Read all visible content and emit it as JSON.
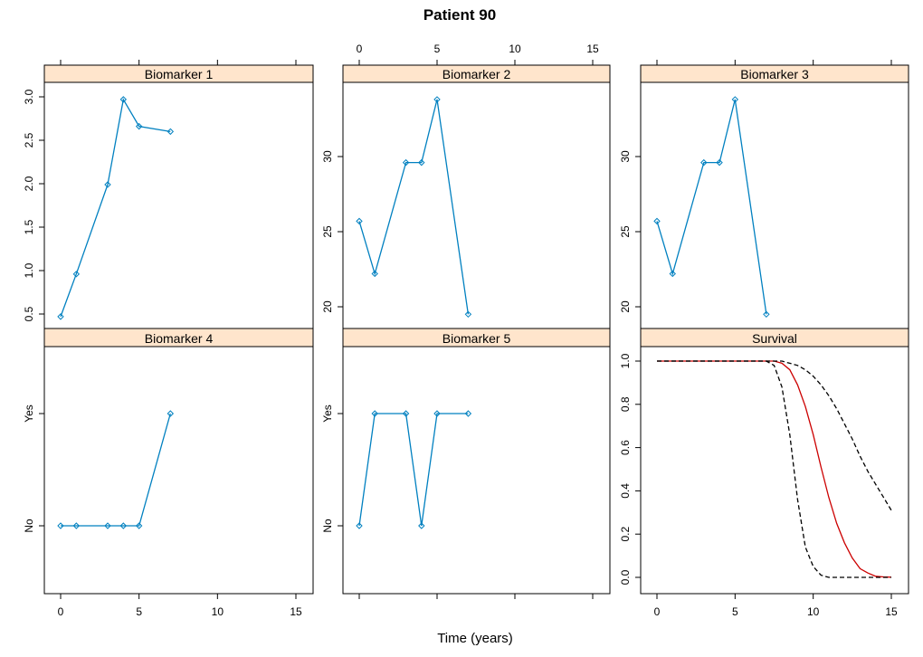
{
  "title": "Patient 90",
  "xlabel": "Time (years)",
  "colors": {
    "strip_bg": "#FFE5CC",
    "series": "#0080C0",
    "survival": "#CC0000",
    "bounds": "#000000"
  },
  "chart_data": [
    {
      "type": "line",
      "strip_label": "Biomarker 1",
      "x": [
        0,
        1,
        3,
        4,
        5,
        7
      ],
      "y": [
        0.47,
        0.96,
        1.99,
        2.97,
        2.66,
        2.6
      ],
      "xlim": [
        0,
        15
      ],
      "y_ticks": [
        0.5,
        1.0,
        1.5,
        2.0,
        2.5,
        3.0
      ],
      "y_tick_labels": [
        "0.5",
        "1.0",
        "1.5",
        "2.0",
        "2.5",
        "3.0"
      ],
      "markers": "open-diamond"
    },
    {
      "type": "line",
      "strip_label": "Biomarker 2",
      "x": [
        0,
        1,
        3,
        4,
        5,
        7
      ],
      "y": [
        25.7,
        22.2,
        29.6,
        29.6,
        33.8,
        19.5
      ],
      "xlim": [
        0,
        15
      ],
      "y_ticks": [
        20,
        25,
        30
      ],
      "y_tick_labels": [
        "20",
        "25",
        "30"
      ],
      "markers": "open-diamond"
    },
    {
      "type": "line",
      "strip_label": "Biomarker 3",
      "x": [
        0,
        1,
        3,
        4,
        5,
        7
      ],
      "y": [
        25.7,
        22.2,
        29.6,
        29.6,
        33.8,
        19.5
      ],
      "xlim": [
        0,
        15
      ],
      "y_ticks": [
        20,
        25,
        30
      ],
      "y_tick_labels": [
        "20",
        "25",
        "30"
      ],
      "markers": "open-diamond"
    },
    {
      "type": "line",
      "strip_label": "Biomarker 4",
      "x": [
        0,
        1,
        3,
        4,
        5,
        7
      ],
      "y": [
        "No",
        "No",
        "No",
        "No",
        "No",
        "Yes"
      ],
      "categories": [
        "No",
        "Yes"
      ],
      "xlim": [
        0,
        15
      ],
      "y_tick_labels": [
        "No",
        "Yes"
      ],
      "markers": "open-diamond"
    },
    {
      "type": "line",
      "strip_label": "Biomarker 5",
      "x": [
        0,
        1,
        3,
        4,
        5,
        7
      ],
      "y": [
        "No",
        "Yes",
        "Yes",
        "No",
        "Yes",
        "Yes"
      ],
      "categories": [
        "No",
        "Yes"
      ],
      "xlim": [
        0,
        15
      ],
      "y_tick_labels": [
        "No",
        "Yes"
      ],
      "markers": "open-diamond"
    },
    {
      "type": "line",
      "strip_label": "Survival",
      "xlim": [
        0,
        15
      ],
      "ylim": [
        0,
        1
      ],
      "y_ticks": [
        0.0,
        0.2,
        0.4,
        0.6,
        0.8,
        1.0
      ],
      "y_tick_labels": [
        "0.0",
        "0.2",
        "0.4",
        "0.6",
        "0.8",
        "1.0"
      ],
      "series": [
        {
          "role": "estimate",
          "style": "solid-red",
          "x": [
            0,
            7,
            7.5,
            8,
            8.5,
            9,
            9.5,
            10,
            10.5,
            11,
            11.5,
            12,
            12.5,
            13,
            13.5,
            14,
            14.5,
            15
          ],
          "y": [
            1.0,
            1.0,
            1.0,
            0.99,
            0.96,
            0.89,
            0.79,
            0.66,
            0.51,
            0.37,
            0.25,
            0.16,
            0.09,
            0.04,
            0.02,
            0.005,
            0.002,
            0.001
          ]
        },
        {
          "role": "lower",
          "style": "dashed-black",
          "x": [
            0,
            7,
            7.5,
            8,
            8.5,
            9,
            9.5,
            10,
            10.5,
            11,
            12,
            13,
            14,
            15
          ],
          "y": [
            1.0,
            1.0,
            0.98,
            0.88,
            0.66,
            0.36,
            0.14,
            0.05,
            0.01,
            0.0,
            0.0,
            0.0,
            0.0,
            0.0
          ]
        },
        {
          "role": "upper",
          "style": "dashed-black",
          "x": [
            0,
            7,
            8,
            8.5,
            9,
            9.5,
            10,
            10.5,
            11,
            11.5,
            12,
            12.5,
            13,
            13.5,
            14,
            14.5,
            15
          ],
          "y": [
            1.0,
            1.0,
            1.0,
            0.99,
            0.98,
            0.96,
            0.93,
            0.89,
            0.84,
            0.78,
            0.71,
            0.64,
            0.56,
            0.49,
            0.43,
            0.37,
            0.31
          ]
        }
      ]
    }
  ],
  "x_ticks": [
    0,
    5,
    10,
    15
  ],
  "x_tick_labels": [
    "0",
    "5",
    "10",
    "15"
  ]
}
